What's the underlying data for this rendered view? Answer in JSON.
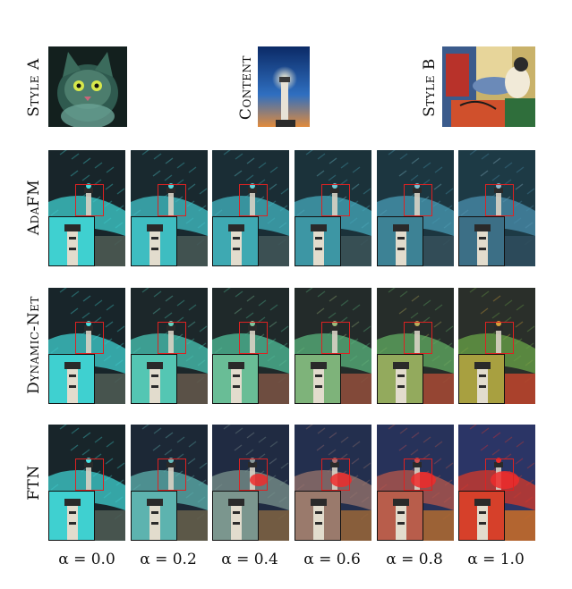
{
  "top": {
    "style_a_label": "Style A",
    "content_label": "Content",
    "style_b_label": "Style B"
  },
  "rows": [
    {
      "label": "AdaFM"
    },
    {
      "label": "Dynamic-Net"
    },
    {
      "label": "FTN"
    }
  ],
  "alphas": [
    "α = 0.0",
    "α = 0.2",
    "α = 0.4",
    "α = 0.6",
    "α = 0.8",
    "α = 1.0"
  ],
  "colors": {
    "inset_border": "#111111",
    "zoom_box": "#dd2222",
    "style_a_tone": "#3fd0d0",
    "style_b_tone": "#d4462a"
  }
}
